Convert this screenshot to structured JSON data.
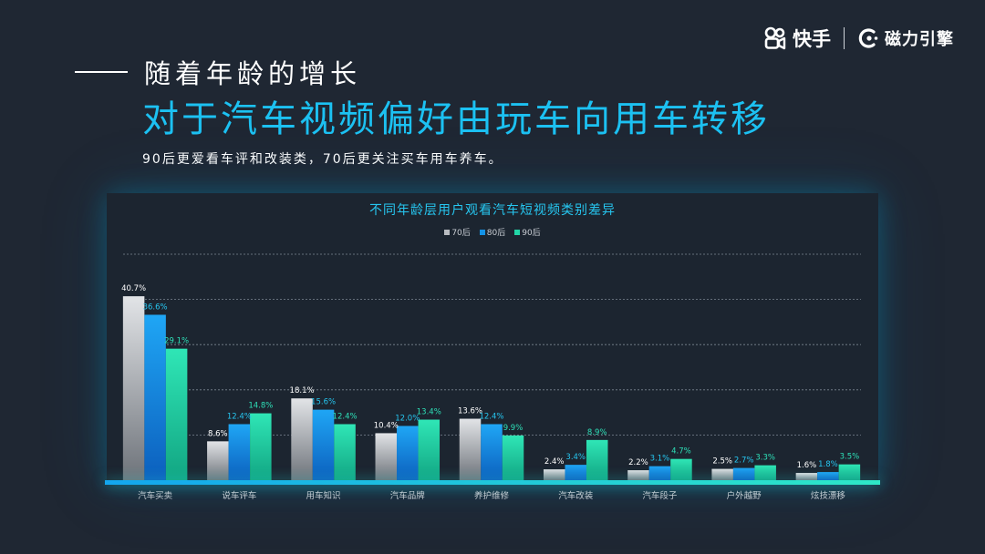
{
  "brand": {
    "logo_text": "快手",
    "partner_text": "磁力引擎"
  },
  "header": {
    "subtitle": "随着年龄的增长",
    "title": "对于汽车视频偏好由玩车向用车转移",
    "description": "90后更爱看车评和改装类，70后更关注买车用车养车。"
  },
  "colors": {
    "background": "#1f2733",
    "title_accent": "#1cc1f2",
    "series_70": "#b9bcc1",
    "series_80": "#1492e6",
    "series_90": "#22d6a7"
  },
  "chart_data": {
    "type": "bar",
    "title": "不同年龄层用户观看汽车短视频类别差异",
    "categories": [
      "汽车买卖",
      "说车评车",
      "用车知识",
      "汽车品牌",
      "养护维修",
      "汽车改装",
      "汽车段子",
      "户外越野",
      "炫技漂移"
    ],
    "series": [
      {
        "name": "70后",
        "values": [
          40.7,
          8.6,
          18.1,
          10.4,
          13.6,
          2.4,
          2.2,
          2.5,
          1.6
        ]
      },
      {
        "name": "80后",
        "values": [
          36.6,
          12.4,
          15.6,
          12.0,
          12.4,
          3.4,
          3.1,
          2.7,
          1.8
        ]
      },
      {
        "name": "90后",
        "values": [
          29.1,
          14.8,
          12.4,
          13.4,
          9.9,
          8.9,
          4.7,
          3.3,
          3.5
        ]
      }
    ],
    "value_suffix": "%",
    "ylim": [
      0,
      50
    ],
    "grid": true,
    "legend_position": "top-center"
  }
}
